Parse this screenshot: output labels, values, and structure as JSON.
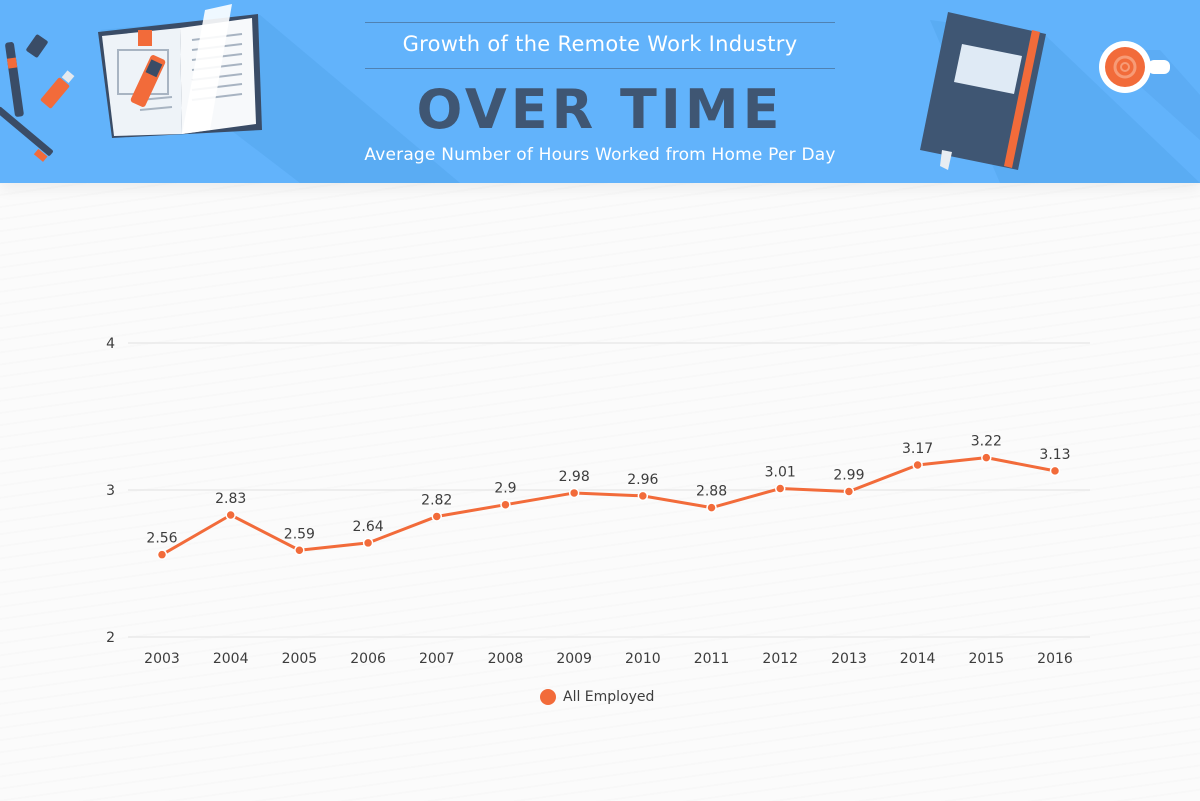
{
  "header": {
    "title_top": "Growth of the Remote Work Industry",
    "title_main": "OVER TIME",
    "subtitle": "Average Number of Hours Worked from Home Per Day",
    "colors": {
      "banner": "#62b3fb",
      "title_main": "#3f5673",
      "accent": "#f26b3a"
    },
    "decorations": [
      "pen-icon",
      "usb-drive-icon",
      "pencil-icon",
      "open-book-icon",
      "highlighter-icon",
      "notebook-icon",
      "coffee-cup-icon"
    ]
  },
  "chart_data": {
    "type": "line",
    "title": "Average Number of Hours Worked from Home Per Day",
    "xlabel": "",
    "ylabel": "",
    "categories": [
      "2003",
      "2004",
      "2005",
      "2006",
      "2007",
      "2008",
      "2009",
      "2010",
      "2011",
      "2012",
      "2013",
      "2014",
      "2015",
      "2016"
    ],
    "series": [
      {
        "name": "All Employed",
        "color": "#f26b3a",
        "values": [
          2.56,
          2.83,
          2.59,
          2.64,
          2.82,
          2.9,
          2.98,
          2.96,
          2.88,
          3.01,
          2.99,
          3.17,
          3.22,
          3.13
        ]
      }
    ],
    "ylim": [
      2,
      4
    ],
    "yticks": [
      2,
      3,
      4
    ],
    "grid": true,
    "legend": "bottom-center",
    "data_labels": true
  },
  "legend": {
    "label": "All Employed",
    "color": "#f26b3a"
  }
}
